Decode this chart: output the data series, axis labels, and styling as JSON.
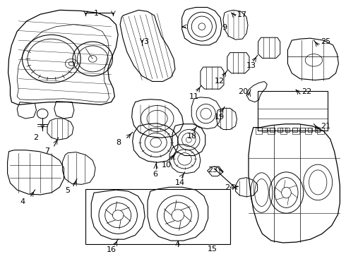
{
  "bg_color": "#ffffff",
  "line_color": "#000000",
  "fig_width": 4.9,
  "fig_height": 3.6,
  "dpi": 100,
  "xlim": [
    0,
    490
  ],
  "ylim": [
    0,
    360
  ]
}
